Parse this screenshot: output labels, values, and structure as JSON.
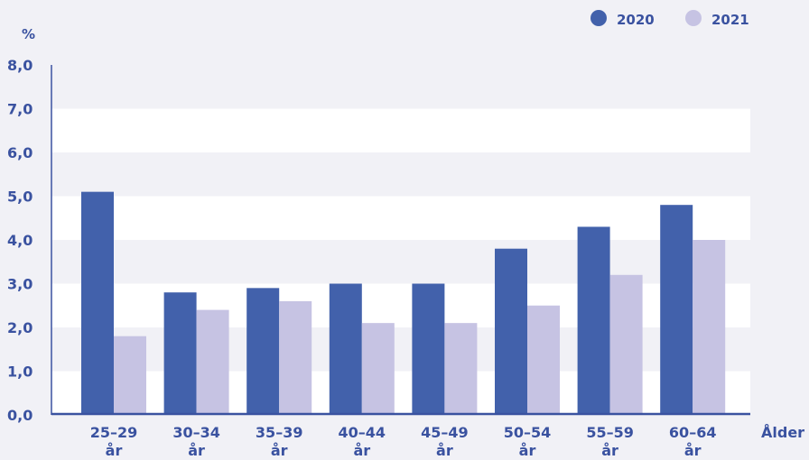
{
  "chart_data": {
    "type": "bar",
    "title": "",
    "ylabel": "%",
    "xlabel": "Ålder",
    "categories": [
      [
        "25–29",
        "år"
      ],
      [
        "30–34",
        "år"
      ],
      [
        "35–39",
        "år"
      ],
      [
        "40–44",
        "år"
      ],
      [
        "45–49",
        "år"
      ],
      [
        "50–54",
        "år"
      ],
      [
        "55–59",
        "år"
      ],
      [
        "60–64",
        "år"
      ]
    ],
    "series": [
      {
        "name": "2020",
        "color": "#4261ab",
        "values": [
          5.1,
          2.8,
          2.9,
          3.0,
          3.0,
          3.8,
          4.3,
          4.8
        ]
      },
      {
        "name": "2021",
        "color": "#c6c3e3",
        "values": [
          1.8,
          2.4,
          2.6,
          2.1,
          2.1,
          2.5,
          3.2,
          4.0
        ]
      }
    ],
    "ylim": [
      0,
      8
    ],
    "yticks": [
      "0,0",
      "1,0",
      "2,0",
      "3,0",
      "4,0",
      "5,0",
      "6,0",
      "7,0",
      "8,0"
    ],
    "grid": true,
    "legend": "top-right"
  },
  "colors": {
    "axis": "#3a52a0",
    "band": "#ffffff"
  }
}
